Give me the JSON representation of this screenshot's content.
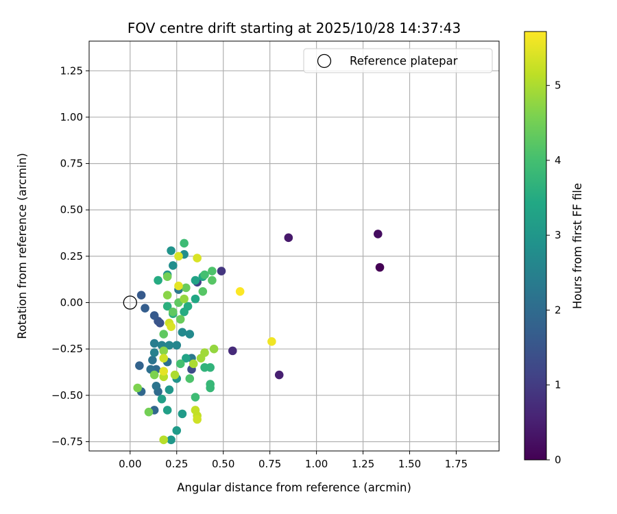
{
  "chart_data": {
    "type": "scatter",
    "title": "FOV centre drift starting at 2025/10/28 14:37:43",
    "xlabel": "Angular distance from reference (arcmin)",
    "ylabel": "Rotation from reference (arcmin)",
    "xlim": [
      -0.22,
      1.98
    ],
    "ylim": [
      -0.8,
      1.41
    ],
    "xticks": [
      0.0,
      0.25,
      0.5,
      0.75,
      1.0,
      1.25,
      1.5,
      1.75
    ],
    "xtick_labels": [
      "0.00",
      "0.25",
      "0.50",
      "0.75",
      "1.00",
      "1.25",
      "1.50",
      "1.75"
    ],
    "yticks": [
      -0.75,
      -0.5,
      -0.25,
      0.0,
      0.25,
      0.5,
      0.75,
      1.0,
      1.25
    ],
    "ytick_labels": [
      "−0.75",
      "−0.50",
      "−0.25",
      "0.00",
      "0.25",
      "0.50",
      "0.75",
      "1.00",
      "1.25"
    ],
    "grid": true,
    "legend": {
      "entries": [
        "Reference platepar"
      ],
      "placement": "top-right"
    },
    "reference_point": {
      "x": 0.0,
      "y": 0.0,
      "label": "Reference platepar"
    },
    "colorbar": {
      "label": "Hours from first FF file",
      "range": [
        0,
        5.72
      ],
      "ticks": [
        0,
        1,
        2,
        3,
        4,
        5
      ],
      "tick_labels": [
        "0",
        "1",
        "2",
        "3",
        "4",
        "5"
      ],
      "colormap": "viridis"
    },
    "points": [
      {
        "x": 1.34,
        "y": 0.19,
        "h": 0.0
      },
      {
        "x": 1.33,
        "y": 0.37,
        "h": 0.2
      },
      {
        "x": 0.85,
        "y": 0.35,
        "h": 0.4
      },
      {
        "x": 0.8,
        "y": -0.39,
        "h": 0.5
      },
      {
        "x": 0.55,
        "y": -0.26,
        "h": 0.7
      },
      {
        "x": 0.49,
        "y": 0.17,
        "h": 0.9
      },
      {
        "x": 0.36,
        "y": 0.11,
        "h": 1.1
      },
      {
        "x": 0.33,
        "y": -0.36,
        "h": 1.3
      },
      {
        "x": 0.16,
        "y": -0.11,
        "h": 1.4
      },
      {
        "x": 0.15,
        "y": -0.1,
        "h": 1.5
      },
      {
        "x": 0.13,
        "y": -0.07,
        "h": 1.6
      },
      {
        "x": 0.06,
        "y": 0.04,
        "h": 1.6
      },
      {
        "x": 0.08,
        "y": -0.03,
        "h": 1.7
      },
      {
        "x": 0.05,
        "y": -0.34,
        "h": 1.8
      },
      {
        "x": 0.06,
        "y": -0.48,
        "h": 1.9
      },
      {
        "x": 0.13,
        "y": -0.58,
        "h": 1.9
      },
      {
        "x": 0.14,
        "y": -0.36,
        "h": 2.0
      },
      {
        "x": 0.15,
        "y": -0.48,
        "h": 2.0
      },
      {
        "x": 0.11,
        "y": -0.36,
        "h": 2.1
      },
      {
        "x": 0.2,
        "y": -0.32,
        "h": 2.1
      },
      {
        "x": 0.12,
        "y": -0.31,
        "h": 2.2
      },
      {
        "x": 0.14,
        "y": -0.45,
        "h": 2.2
      },
      {
        "x": 0.26,
        "y": 0.07,
        "h": 2.3
      },
      {
        "x": 0.33,
        "y": -0.3,
        "h": 2.3
      },
      {
        "x": 0.13,
        "y": -0.22,
        "h": 2.4
      },
      {
        "x": 0.13,
        "y": -0.27,
        "h": 2.5
      },
      {
        "x": 0.17,
        "y": -0.23,
        "h": 2.5
      },
      {
        "x": 0.21,
        "y": -0.23,
        "h": 2.6
      },
      {
        "x": 0.25,
        "y": -0.23,
        "h": 2.6
      },
      {
        "x": 0.28,
        "y": -0.16,
        "h": 2.7
      },
      {
        "x": 0.32,
        "y": -0.17,
        "h": 2.7
      },
      {
        "x": 0.23,
        "y": 0.2,
        "h": 2.8
      },
      {
        "x": 0.29,
        "y": 0.26,
        "h": 2.8
      },
      {
        "x": 0.22,
        "y": 0.28,
        "h": 2.9
      },
      {
        "x": 0.2,
        "y": 0.15,
        "h": 2.9
      },
      {
        "x": 0.25,
        "y": -0.41,
        "h": 2.9
      },
      {
        "x": 0.21,
        "y": -0.47,
        "h": 3.0
      },
      {
        "x": 0.22,
        "y": -0.74,
        "h": 3.0
      },
      {
        "x": 0.25,
        "y": -0.69,
        "h": 3.1
      },
      {
        "x": 0.28,
        "y": -0.6,
        "h": 3.1
      },
      {
        "x": 0.17,
        "y": -0.52,
        "h": 3.2
      },
      {
        "x": 0.2,
        "y": -0.58,
        "h": 3.2
      },
      {
        "x": 0.3,
        "y": -0.3,
        "h": 3.3
      },
      {
        "x": 0.35,
        "y": 0.12,
        "h": 3.3
      },
      {
        "x": 0.39,
        "y": 0.14,
        "h": 3.4
      },
      {
        "x": 0.35,
        "y": 0.02,
        "h": 3.4
      },
      {
        "x": 0.31,
        "y": -0.02,
        "h": 3.5
      },
      {
        "x": 0.29,
        "y": -0.05,
        "h": 3.5
      },
      {
        "x": 0.15,
        "y": 0.12,
        "h": 3.5
      },
      {
        "x": 0.2,
        "y": -0.02,
        "h": 3.6
      },
      {
        "x": 0.23,
        "y": -0.06,
        "h": 3.6
      },
      {
        "x": 0.4,
        "y": -0.35,
        "h": 3.7
      },
      {
        "x": 0.43,
        "y": -0.35,
        "h": 3.7
      },
      {
        "x": 0.43,
        "y": -0.44,
        "h": 3.8
      },
      {
        "x": 0.43,
        "y": -0.46,
        "h": 3.8
      },
      {
        "x": 0.35,
        "y": -0.51,
        "h": 3.9
      },
      {
        "x": 0.29,
        "y": 0.32,
        "h": 3.9
      },
      {
        "x": 0.4,
        "y": 0.15,
        "h": 4.0
      },
      {
        "x": 0.27,
        "y": -0.33,
        "h": 4.0
      },
      {
        "x": 0.32,
        "y": -0.41,
        "h": 4.1
      },
      {
        "x": 0.44,
        "y": 0.17,
        "h": 4.1
      },
      {
        "x": 0.39,
        "y": 0.06,
        "h": 4.2
      },
      {
        "x": 0.44,
        "y": 0.12,
        "h": 4.2
      },
      {
        "x": 0.23,
        "y": -0.05,
        "h": 4.3
      },
      {
        "x": 0.18,
        "y": -0.17,
        "h": 4.3
      },
      {
        "x": 0.26,
        "y": 0.0,
        "h": 4.3
      },
      {
        "x": 0.3,
        "y": 0.08,
        "h": 4.4
      },
      {
        "x": 0.27,
        "y": -0.09,
        "h": 4.4
      },
      {
        "x": 0.2,
        "y": 0.14,
        "h": 4.5
      },
      {
        "x": 0.1,
        "y": -0.59,
        "h": 4.5
      },
      {
        "x": 0.04,
        "y": -0.46,
        "h": 4.6
      },
      {
        "x": 0.13,
        "y": -0.39,
        "h": 4.6
      },
      {
        "x": 0.18,
        "y": -0.26,
        "h": 4.7
      },
      {
        "x": 0.2,
        "y": 0.04,
        "h": 4.7
      },
      {
        "x": 0.29,
        "y": 0.02,
        "h": 4.8
      },
      {
        "x": 0.45,
        "y": -0.25,
        "h": 4.8
      },
      {
        "x": 0.4,
        "y": -0.27,
        "h": 4.9
      },
      {
        "x": 0.38,
        "y": -0.3,
        "h": 4.9
      },
      {
        "x": 0.34,
        "y": -0.33,
        "h": 5.0
      },
      {
        "x": 0.24,
        "y": -0.39,
        "h": 5.0
      },
      {
        "x": 0.18,
        "y": -0.74,
        "h": 5.1
      },
      {
        "x": 0.18,
        "y": -0.4,
        "h": 5.1
      },
      {
        "x": 0.36,
        "y": -0.61,
        "h": 5.2
      },
      {
        "x": 0.35,
        "y": -0.58,
        "h": 5.2
      },
      {
        "x": 0.36,
        "y": -0.63,
        "h": 5.3
      },
      {
        "x": 0.18,
        "y": -0.3,
        "h": 5.3
      },
      {
        "x": 0.21,
        "y": -0.11,
        "h": 5.3
      },
      {
        "x": 0.22,
        "y": -0.13,
        "h": 5.4
      },
      {
        "x": 0.36,
        "y": 0.24,
        "h": 5.4
      },
      {
        "x": 0.26,
        "y": 0.25,
        "h": 5.4
      },
      {
        "x": 0.26,
        "y": 0.09,
        "h": 5.5
      },
      {
        "x": 0.18,
        "y": -0.37,
        "h": 5.5
      },
      {
        "x": 0.76,
        "y": -0.21,
        "h": 5.6
      },
      {
        "x": 0.59,
        "y": 0.06,
        "h": 5.7
      }
    ]
  }
}
